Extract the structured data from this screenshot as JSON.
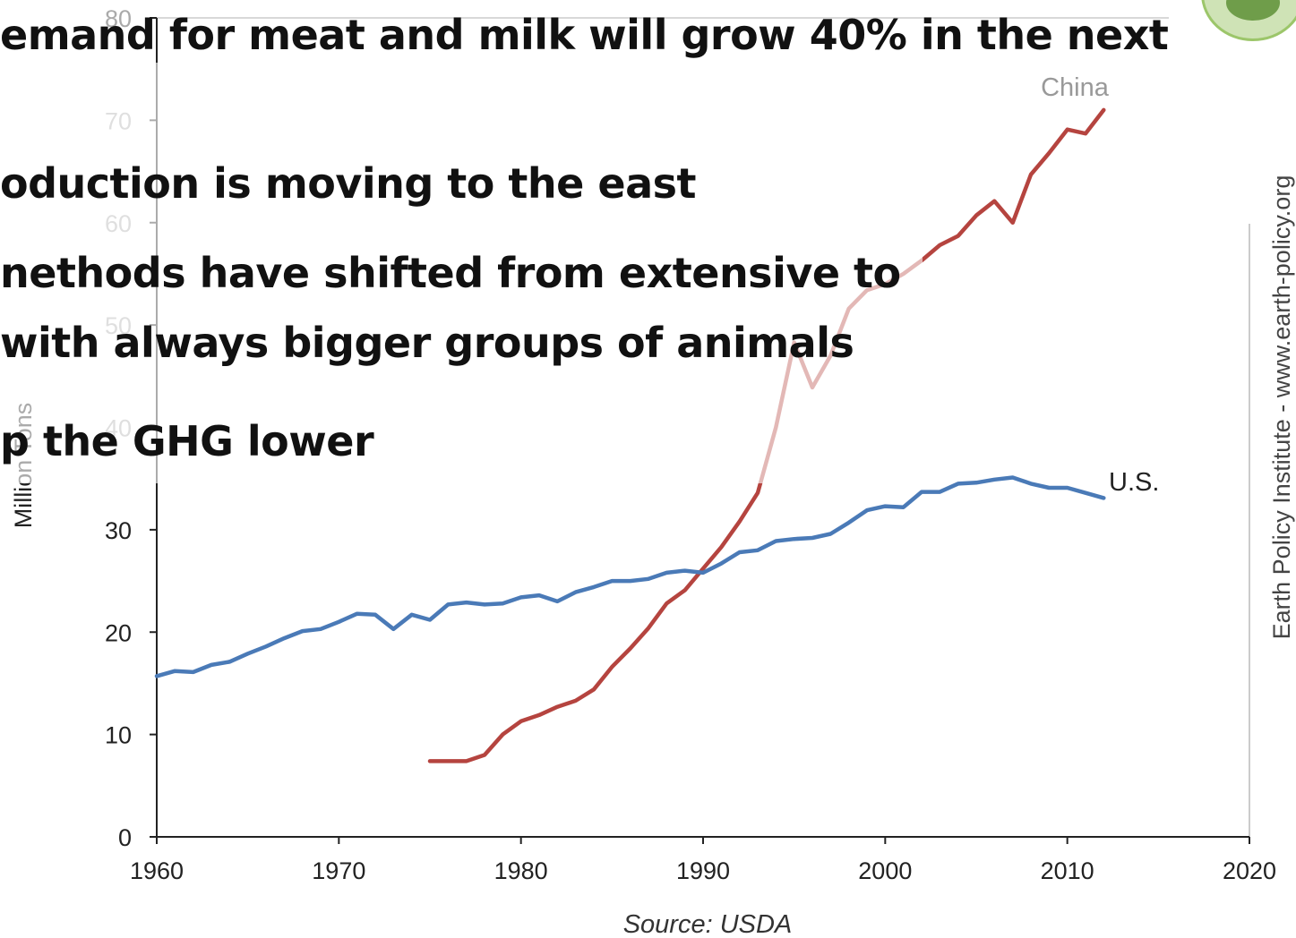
{
  "slide": {
    "bullets": [
      "emand for meat and milk will grow 40%  in the next",
      "oduction is moving to the east",
      "nethods have shifted from extensive to",
      " with always bigger groups of animals",
      "p the GHG lower"
    ]
  },
  "chart_data": {
    "type": "line",
    "ylabel": "Million Tons",
    "source": "Source: USDA",
    "side_credit": "Earth Policy Institute - www.earth-policy.org",
    "xlim": [
      1960,
      2020
    ],
    "ylim": [
      0,
      80
    ],
    "xticks": [
      1960,
      1970,
      1980,
      1990,
      2000,
      2010,
      2020
    ],
    "yticks": [
      0,
      10,
      20,
      30,
      40,
      50,
      60,
      70,
      80
    ],
    "colors": {
      "china": "#b5443f",
      "us": "#4a7ab7"
    },
    "series": [
      {
        "name": "China",
        "x": [
          1975,
          1976,
          1977,
          1978,
          1979,
          1980,
          1981,
          1982,
          1983,
          1984,
          1985,
          1986,
          1987,
          1988,
          1989,
          1990,
          1991,
          1992,
          1993,
          1994,
          1995,
          1996,
          1997,
          1998,
          1999,
          2000,
          2001,
          2002,
          2003,
          2004,
          2005,
          2006,
          2007,
          2008,
          2009,
          2010,
          2011,
          2012
        ],
        "y": [
          7.4,
          7.4,
          7.4,
          8.0,
          10.0,
          11.3,
          11.9,
          12.7,
          13.3,
          14.4,
          16.6,
          18.4,
          20.4,
          22.8,
          24.1,
          26.2,
          28.3,
          30.8,
          33.6,
          40.0,
          48.3,
          43.9,
          47.0,
          51.6,
          53.4,
          54.0,
          55.0,
          56.3,
          57.8,
          58.7,
          60.7,
          62.1,
          60.0,
          64.7,
          66.8,
          69.1,
          68.7,
          71.0
        ]
      },
      {
        "name": "U.S.",
        "x": [
          1960,
          1961,
          1962,
          1963,
          1964,
          1965,
          1966,
          1967,
          1968,
          1969,
          1970,
          1971,
          1972,
          1973,
          1974,
          1975,
          1976,
          1977,
          1978,
          1979,
          1980,
          1981,
          1982,
          1983,
          1984,
          1985,
          1986,
          1987,
          1988,
          1989,
          1990,
          1991,
          1992,
          1993,
          1994,
          1995,
          1996,
          1997,
          1998,
          1999,
          2000,
          2001,
          2002,
          2003,
          2004,
          2005,
          2006,
          2007,
          2008,
          2009,
          2010,
          2011,
          2012
        ],
        "y": [
          15.7,
          16.2,
          16.1,
          16.8,
          17.1,
          17.9,
          18.6,
          19.4,
          20.1,
          20.3,
          21.0,
          21.8,
          21.7,
          20.3,
          21.7,
          21.2,
          22.7,
          22.9,
          22.7,
          22.8,
          23.4,
          23.6,
          23.0,
          23.9,
          24.4,
          25.0,
          25.0,
          25.2,
          25.8,
          26.0,
          25.8,
          26.7,
          27.8,
          28.0,
          28.9,
          29.1,
          29.2,
          29.6,
          30.7,
          31.9,
          32.3,
          32.2,
          33.7,
          33.7,
          34.5,
          34.6,
          34.9,
          35.1,
          34.5,
          34.1,
          34.1,
          33.6,
          33.1
        ]
      }
    ]
  }
}
